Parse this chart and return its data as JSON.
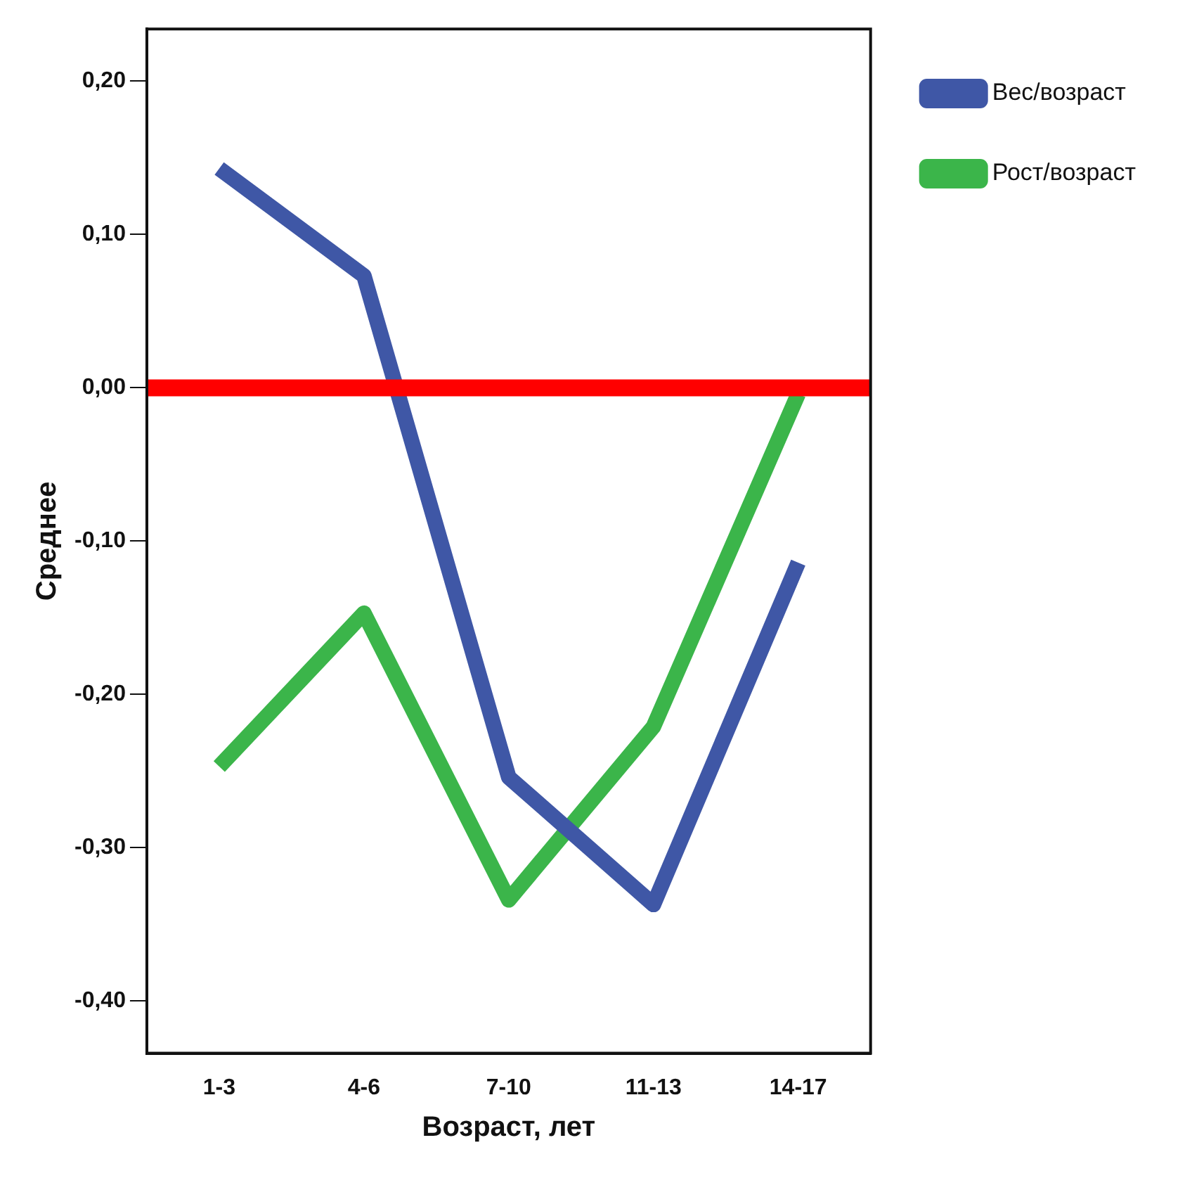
{
  "chart_data": {
    "type": "line",
    "xlabel": "Возраст, лет",
    "ylabel": "Среднее",
    "categories": [
      "1-3",
      "4-6",
      "7-10",
      "11-13",
      "14-17"
    ],
    "series": [
      {
        "name": "Вес/возраст",
        "color": "#3f57a6",
        "values": [
          0.143,
          0.073,
          -0.254,
          -0.337,
          -0.114
        ]
      },
      {
        "name": "Рост/возраст",
        "color": "#3bb54a",
        "values": [
          -0.247,
          -0.147,
          -0.334,
          -0.221,
          -0.004
        ]
      }
    ],
    "ylim": [
      -0.434,
      0.234
    ],
    "yticks": [
      {
        "value": -0.4,
        "label": "-0,40"
      },
      {
        "value": -0.3,
        "label": "-0,30"
      },
      {
        "value": -0.2,
        "label": "-0,20"
      },
      {
        "value": -0.1,
        "label": "-0,10"
      },
      {
        "value": 0,
        "label": "0,00"
      },
      {
        "value": 0.1,
        "label": "0,10"
      },
      {
        "value": 0.2,
        "label": "0,20"
      }
    ],
    "ref_lines": [
      {
        "axis": "y",
        "value": 0,
        "color": "#ff0000"
      }
    ],
    "grid": false,
    "legend": "top right",
    "marker": "none",
    "line_style": "solid"
  }
}
